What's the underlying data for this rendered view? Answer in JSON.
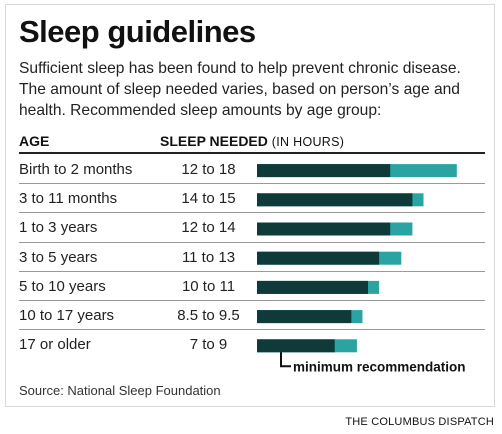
{
  "title": "Sleep guidelines",
  "subtitle": "Sufficient sleep has been found to help prevent chronic disease. The amount of sleep needed varies, based on person’s age and health. Recommended sleep amounts by age group:",
  "headers": {
    "age": "AGE",
    "sleep": "SLEEP NEEDED",
    "unit": "(IN HOURS)"
  },
  "chart_data": {
    "type": "bar",
    "categories": [
      "Birth to 2 months",
      "3 to 11 months",
      "1 to 3 years",
      "3 to 5 years",
      "5 to 10 years",
      "10 to 17 years",
      "17 or older"
    ],
    "ranges": [
      "12 to 18",
      "14 to 15",
      "12 to 14",
      "11 to 13",
      "10 to 11",
      "8.5 to 9.5",
      "7 to 9"
    ],
    "series": [
      {
        "name": "minimum recommendation",
        "values": [
          12,
          14,
          12,
          11,
          10,
          8.5,
          7
        ]
      },
      {
        "values": [
          18,
          15,
          14,
          13,
          11,
          9.5,
          9
        ]
      }
    ],
    "annotation": "minimum recommendation",
    "colors": {
      "minimum": "#0f3a3a",
      "range": "#2aa3a3"
    }
  },
  "source": "Source: National Sleep Foundation",
  "credit": "THE COLUMBUS DISPATCH"
}
